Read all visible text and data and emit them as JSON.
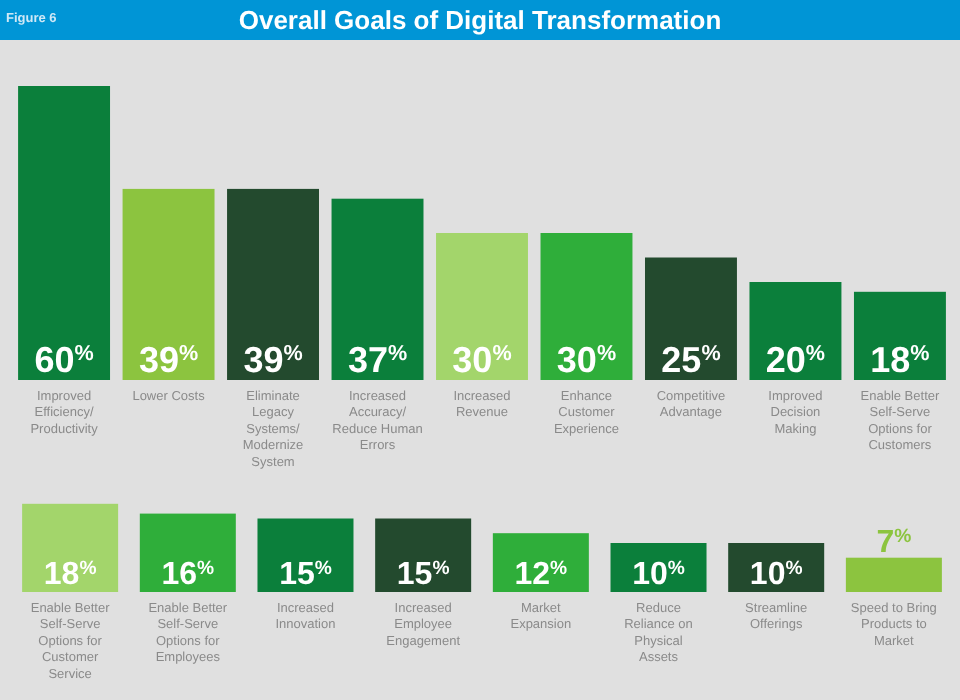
{
  "chart_data": [
    {
      "type": "bar",
      "title": "Overall Goals of Digital Transformation",
      "annotations": [
        "Figure 6"
      ],
      "categories": [
        "Improved Efficiency/Productivity",
        "Lower Costs",
        "Eliminate Legacy Systems/Modernize System",
        "Increased Accuracy/Reduce Human Errors",
        "Increased Revenue",
        "Enhance Customer Experience",
        "Competitive Advantage",
        "Improved Decision Making",
        "Enable Better Self-Serve Options for Customers"
      ],
      "values": [
        60,
        39,
        39,
        37,
        30,
        30,
        25,
        20,
        18
      ],
      "value_labels": [
        "60$^{%}$",
        "39$^{%}$",
        "39$^{%}$",
        "37$^{%}$",
        "30$^{%}$",
        "30$^{%}$",
        "25$^{%}$",
        "20$^{%}$",
        "18$^{%}$"
      ],
      "colors": [
        "#0b7f3b",
        "#8cc43f",
        "#234a2e",
        "#0b7f3b",
        "#a3d56b",
        "#2fae3a",
        "#234a2e",
        "#0b7f3b",
        "#0b7f3b"
      ]
    },
    {
      "type": "bar",
      "categories": [
        "Enable Better Self-Serve Options for Customer Service",
        "Enable Better Self-Serve Options for Employees",
        "Increased Innovation",
        "Increased Employee Engagement",
        "Market Expansion",
        "Reduce Reliance on Physical Assets",
        "Streamline Offerings",
        "Speed to Bring Products to Market"
      ],
      "values": [
        18,
        16,
        15,
        15,
        12,
        10,
        10,
        7
      ],
      "value_labels": [
        "18$^{%}$",
        "16$^{%}$",
        "15$^{%}$",
        "15$^{%}$",
        "12$^{%}$",
        "10$^{%}$",
        "10$^{%}$",
        "7$^{%}$"
      ],
      "colors": [
        "#a3d56b",
        "#2fae3a",
        "#0b7f3b",
        "#234a2e",
        "#2fae3a",
        "#0b7f3b",
        "#234a2e",
        "#8cc43f"
      ]
    }
  ]
}
